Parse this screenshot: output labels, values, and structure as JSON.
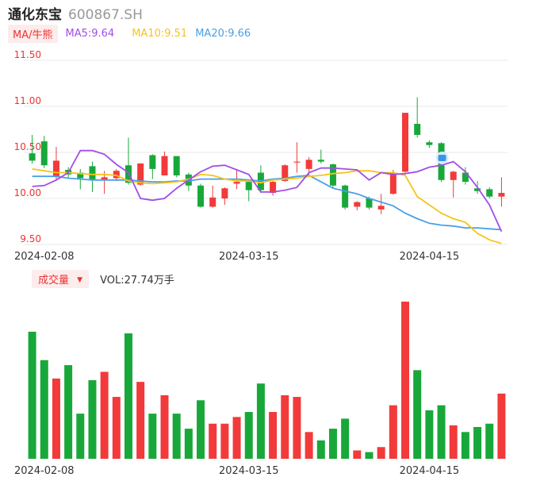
{
  "header": {
    "name": "通化东宝",
    "code": "600867.SH"
  },
  "legend": {
    "ma_tag": "MA/牛熊",
    "ma5": "MA5:9.64",
    "ma10": "MA10:9.51",
    "ma20": "MA20:9.66",
    "colors": {
      "ma5": "#a24de8",
      "ma10": "#f5c518",
      "ma20": "#4a9fe8"
    }
  },
  "volume_legend": {
    "tag": "成交量",
    "arrow": "▼",
    "text": "VOL:27.74万手"
  },
  "colors": {
    "up": "#f23a3a",
    "down": "#18a83a"
  },
  "chart_data": [
    {
      "type": "candlestick",
      "y_ticks": [
        "11.50",
        "11.00",
        "10.50",
        "10.00",
        "9.50"
      ],
      "ylim": [
        9.5,
        11.5
      ],
      "x_ticks": [
        {
          "label": "2024-02-08",
          "index": 1
        },
        {
          "label": "2024-03-15",
          "index": 18
        },
        {
          "label": "2024-04-15",
          "index": 33
        }
      ],
      "candles": [
        {
          "o": 10.49,
          "c": 10.41,
          "h": 10.69,
          "l": 10.38
        },
        {
          "o": 10.62,
          "c": 10.36,
          "h": 10.68,
          "l": 10.33
        },
        {
          "o": 10.24,
          "c": 10.41,
          "h": 10.56,
          "l": 10.2
        },
        {
          "o": 10.31,
          "c": 10.26,
          "h": 10.34,
          "l": 10.22
        },
        {
          "o": 10.28,
          "c": 10.22,
          "h": 10.32,
          "l": 10.1
        },
        {
          "o": 10.35,
          "c": 10.2,
          "h": 10.4,
          "l": 10.07
        },
        {
          "o": 10.2,
          "c": 10.23,
          "h": 10.3,
          "l": 10.05
        },
        {
          "o": 10.22,
          "c": 10.3,
          "h": 10.32,
          "l": 10.19
        },
        {
          "o": 10.36,
          "c": 10.17,
          "h": 10.66,
          "l": 10.15
        },
        {
          "o": 10.15,
          "c": 10.38,
          "h": 10.38,
          "l": 10.14
        },
        {
          "o": 10.47,
          "c": 10.32,
          "h": 10.48,
          "l": 10.21
        },
        {
          "o": 10.25,
          "c": 10.46,
          "h": 10.51,
          "l": 10.25
        },
        {
          "o": 10.46,
          "c": 10.25,
          "h": 10.46,
          "l": 10.23
        },
        {
          "o": 10.26,
          "c": 10.14,
          "h": 10.28,
          "l": 10.08
        },
        {
          "o": 10.14,
          "c": 9.91,
          "h": 10.16,
          "l": 9.9
        },
        {
          "o": 9.91,
          "c": 10.01,
          "h": 10.14,
          "l": 9.9
        },
        {
          "o": 10.0,
          "c": 10.11,
          "h": 10.12,
          "l": 9.93
        },
        {
          "o": 10.16,
          "c": 10.18,
          "h": 10.31,
          "l": 10.1
        },
        {
          "o": 10.18,
          "c": 10.09,
          "h": 10.2,
          "l": 9.97
        },
        {
          "o": 10.28,
          "c": 10.09,
          "h": 10.36,
          "l": 10.06
        },
        {
          "o": 10.06,
          "c": 10.18,
          "h": 10.19,
          "l": 10.03
        },
        {
          "o": 10.19,
          "c": 10.36,
          "h": 10.37,
          "l": 10.18
        },
        {
          "o": 10.39,
          "c": 10.4,
          "h": 10.61,
          "l": 10.28
        },
        {
          "o": 10.32,
          "c": 10.42,
          "h": 10.45,
          "l": 10.26
        },
        {
          "o": 10.42,
          "c": 10.4,
          "h": 10.53,
          "l": 10.38
        },
        {
          "o": 10.37,
          "c": 10.14,
          "h": 10.38,
          "l": 10.12
        },
        {
          "o": 10.14,
          "c": 9.9,
          "h": 10.15,
          "l": 9.88
        },
        {
          "o": 9.91,
          "c": 9.96,
          "h": 9.97,
          "l": 9.87
        },
        {
          "o": 10.0,
          "c": 9.9,
          "h": 10.02,
          "l": 9.88
        },
        {
          "o": 9.88,
          "c": 9.92,
          "h": 10.05,
          "l": 9.83
        },
        {
          "o": 10.05,
          "c": 10.28,
          "h": 10.31,
          "l": 10.04
        },
        {
          "o": 10.29,
          "c": 10.93,
          "h": 10.93,
          "l": 10.28
        },
        {
          "o": 10.81,
          "c": 10.69,
          "h": 11.1,
          "l": 10.66
        },
        {
          "o": 10.61,
          "c": 10.58,
          "h": 10.63,
          "l": 10.55
        },
        {
          "o": 10.6,
          "c": 10.2,
          "h": 10.61,
          "l": 10.18
        },
        {
          "o": 10.2,
          "c": 10.29,
          "h": 10.3,
          "l": 10.01
        },
        {
          "o": 10.28,
          "c": 10.18,
          "h": 10.34,
          "l": 10.15
        },
        {
          "o": 10.11,
          "c": 10.08,
          "h": 10.19,
          "l": 10.05
        },
        {
          "o": 10.1,
          "c": 10.02,
          "h": 10.12,
          "l": 10.0
        },
        {
          "o": 10.02,
          "c": 10.06,
          "h": 10.23,
          "l": 9.91
        }
      ],
      "ma5": [
        10.13,
        10.14,
        10.2,
        10.28,
        10.52,
        10.52,
        10.48,
        10.37,
        10.28,
        10.0,
        9.98,
        10.0,
        10.11,
        10.2,
        10.29,
        10.35,
        10.36,
        10.31,
        10.26,
        10.07,
        10.07,
        10.09,
        10.12,
        10.28,
        10.33,
        10.33,
        10.32,
        10.31,
        10.2,
        10.28,
        10.26,
        10.27,
        10.29,
        10.34,
        10.36,
        10.4,
        10.29,
        10.12,
        9.93,
        9.64
      ],
      "ma10": [
        10.32,
        10.3,
        10.28,
        10.28,
        10.27,
        10.26,
        10.26,
        10.25,
        10.19,
        10.17,
        10.16,
        10.17,
        10.18,
        10.21,
        10.26,
        10.25,
        10.21,
        10.19,
        10.19,
        10.17,
        10.2,
        10.21,
        10.22,
        10.24,
        10.25,
        10.27,
        10.28,
        10.3,
        10.3,
        10.28,
        10.28,
        10.25,
        10.02,
        9.93,
        9.84,
        9.78,
        9.74,
        9.62,
        9.55,
        9.51
      ],
      "ma20": [
        10.24,
        10.24,
        10.24,
        10.22,
        10.21,
        10.2,
        10.2,
        10.2,
        10.2,
        10.19,
        10.18,
        10.18,
        10.19,
        10.19,
        10.21,
        10.21,
        10.21,
        10.21,
        10.2,
        10.19,
        10.21,
        10.22,
        10.24,
        10.25,
        10.18,
        10.11,
        10.08,
        10.05,
        10.0,
        9.96,
        9.92,
        9.84,
        9.78,
        9.73,
        9.71,
        9.7,
        9.68,
        9.68,
        9.67,
        9.66
      ]
    },
    {
      "type": "bar",
      "name": "volume",
      "x_ticks": [
        {
          "label": "2024-02-08",
          "index": 1
        },
        {
          "label": "2024-03-15",
          "index": 18
        },
        {
          "label": "2024-04-15",
          "index": 33
        }
      ],
      "values": [
        76,
        59,
        48,
        56,
        27,
        47,
        52,
        37,
        75,
        46,
        27,
        38,
        27,
        18,
        35,
        21,
        21,
        25,
        28,
        45,
        28,
        38,
        37,
        16,
        11,
        18,
        24,
        5,
        4,
        7,
        32,
        94,
        53,
        29,
        32,
        20,
        16,
        19,
        21,
        39
      ]
    }
  ]
}
